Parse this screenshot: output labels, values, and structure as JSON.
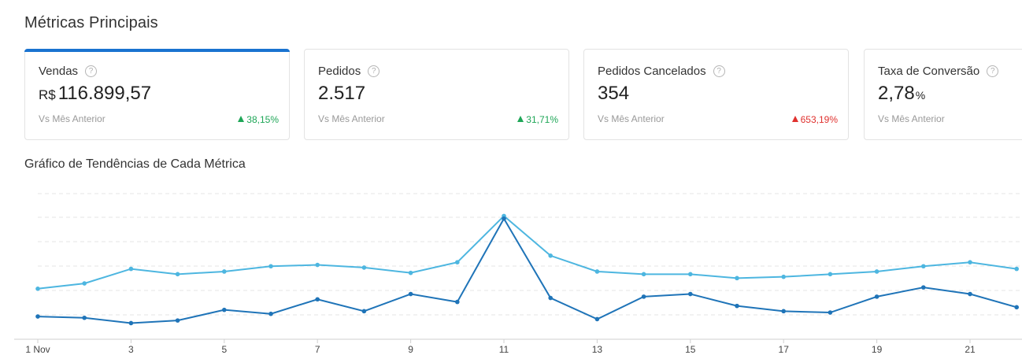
{
  "header": {
    "title": "Métricas Principais"
  },
  "cards": [
    {
      "label": "Vendas",
      "currency": "R$",
      "value": "116.899,57",
      "suffix": "",
      "compare": "Vs Mês Anterior",
      "delta": "38,15%",
      "trend": "up"
    },
    {
      "label": "Pedidos",
      "currency": "",
      "value": "2.517",
      "suffix": "",
      "compare": "Vs Mês Anterior",
      "delta": "31,71%",
      "trend": "up"
    },
    {
      "label": "Pedidos Cancelados",
      "currency": "",
      "value": "354",
      "suffix": "",
      "compare": "Vs Mês Anterior",
      "delta": "653,19%",
      "trend": "up-red"
    },
    {
      "label": "Taxa de Conversão",
      "currency": "",
      "value": "2,78",
      "suffix": "%",
      "compare": "Vs Mês Anterior",
      "delta": "",
      "trend": ""
    }
  ],
  "chart_title": "Gráfico de Tendências de Cada Métrica",
  "chart_data": {
    "type": "line",
    "x": [
      1,
      2,
      3,
      4,
      5,
      6,
      7,
      8,
      9,
      10,
      11,
      12,
      13,
      14,
      15,
      16,
      17,
      18,
      19,
      20,
      21,
      22
    ],
    "tick_labels": [
      "1 Nov",
      "3",
      "5",
      "7",
      "9",
      "11",
      "13",
      "15",
      "17",
      "19",
      "21"
    ],
    "tick_values": [
      1,
      3,
      5,
      7,
      9,
      11,
      13,
      15,
      17,
      19,
      21
    ],
    "ylim": [
      0,
      100
    ],
    "grid": true,
    "legend": "none",
    "series": [
      {
        "color": "#4db6e0",
        "values": [
          40,
          44,
          55,
          51,
          53,
          57,
          58,
          56,
          52,
          60,
          95,
          65,
          53,
          51,
          51,
          48,
          49,
          51,
          53,
          57,
          60,
          55
        ]
      },
      {
        "color": "#1f74b8",
        "values": [
          19,
          18,
          14,
          16,
          24,
          21,
          32,
          23,
          36,
          30,
          93,
          33,
          17,
          34,
          36,
          27,
          23,
          22,
          34,
          41,
          36,
          26
        ]
      }
    ],
    "colors": {
      "accent": "#1a73d0",
      "up": "#1ea657",
      "down": "#e0312e"
    }
  }
}
